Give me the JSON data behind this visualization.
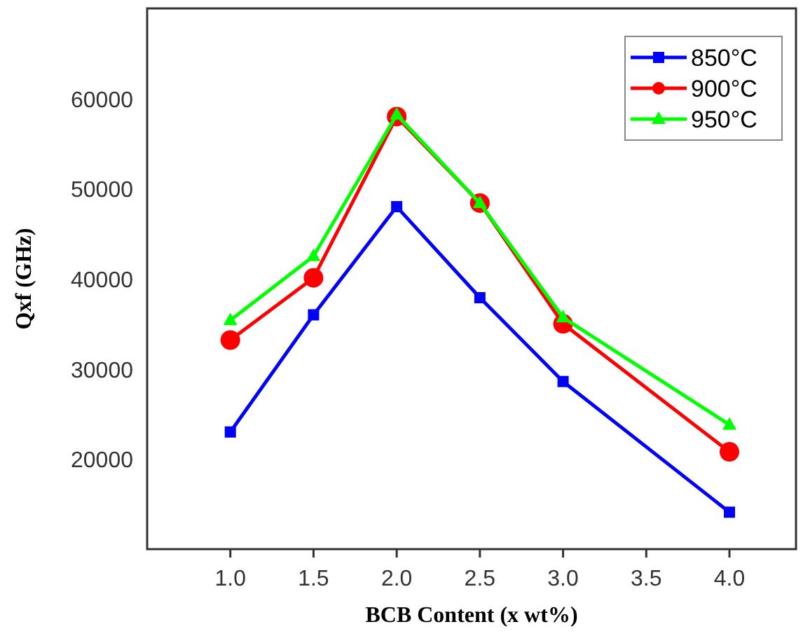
{
  "chart_data": {
    "type": "line",
    "xlabel": "BCB Content (x wt%)",
    "ylabel": "Qxf (GHz)",
    "x": [
      1.0,
      1.5,
      2.0,
      2.5,
      3.0,
      4.0
    ],
    "xlim": [
      0.5,
      4.4
    ],
    "xticks": [
      {
        "value": 1,
        "label": "1.0"
      },
      {
        "value": 1.5,
        "label": "1.5"
      },
      {
        "value": 2,
        "label": "2.0"
      },
      {
        "value": 2.5,
        "label": "2.5"
      },
      {
        "value": 3,
        "label": "3.0"
      },
      {
        "value": 3.5,
        "label": "3.5"
      },
      {
        "value": 4,
        "label": "4.0"
      }
    ],
    "ylim": [
      10000,
      70000
    ],
    "yticks": [
      20000,
      30000,
      40000,
      50000,
      60000
    ],
    "series": [
      {
        "name": "850°C",
        "color": "#0000ff",
        "marker": "square",
        "values": [
          23000,
          36000,
          48000,
          37900,
          28600,
          14100
        ]
      },
      {
        "name": "900°C",
        "color": "#ff0000",
        "marker": "circle",
        "values": [
          33200,
          40100,
          58000,
          48400,
          35000,
          20800
        ]
      },
      {
        "name": "950°C",
        "color": "#00ff00",
        "marker": "triangle",
        "values": [
          35400,
          42500,
          58200,
          48400,
          35700,
          23800
        ]
      }
    ],
    "legend": "top right",
    "grid": false,
    "line_style": "solid"
  }
}
